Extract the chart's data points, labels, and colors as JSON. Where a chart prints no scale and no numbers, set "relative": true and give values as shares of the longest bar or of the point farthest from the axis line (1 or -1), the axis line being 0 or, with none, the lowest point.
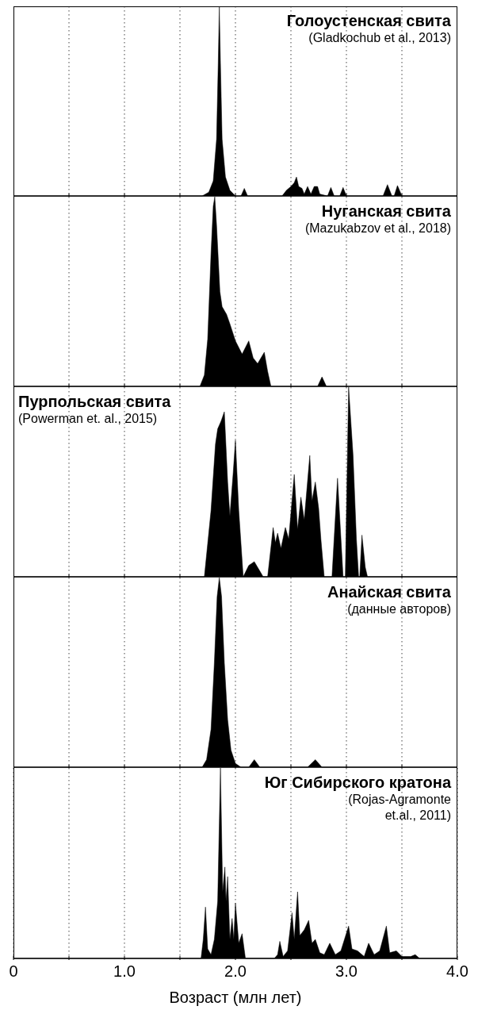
{
  "chart_data": [
    {
      "type": "area",
      "title": "Голоустенская свита",
      "subtitle": "(Gladkochub et al., 2013)",
      "relative": true,
      "color": "#000000",
      "xlim": [
        0,
        4
      ],
      "xticks": [
        {
          "value": 0.5,
          "label": null
        },
        {
          "value": 1,
          "label": null
        },
        {
          "value": 1.5,
          "label": null
        },
        {
          "value": 2,
          "label": null
        },
        {
          "value": 2.5,
          "label": null
        },
        {
          "value": 3,
          "label": null
        },
        {
          "value": 3.5,
          "label": null
        }
      ],
      "grid": "x",
      "tick_labels": false,
      "x": [
        0,
        1.7,
        1.76,
        1.8,
        1.83,
        1.845,
        1.855,
        1.865,
        1.88,
        1.91,
        1.95,
        2.0,
        2.05,
        2.08,
        2.11,
        2.42,
        2.46,
        2.5,
        2.53,
        2.55,
        2.57,
        2.6,
        2.62,
        2.65,
        2.68,
        2.71,
        2.74,
        2.76,
        2.83,
        2.86,
        2.89,
        2.94,
        2.97,
        3.0,
        3.33,
        3.37,
        3.41,
        3.43,
        3.46,
        3.5,
        4
      ],
      "values": [
        0,
        0,
        0.02,
        0.08,
        0.3,
        0.7,
        1,
        0.7,
        0.3,
        0.1,
        0.03,
        0,
        0,
        0.04,
        0,
        0,
        0.03,
        0.05,
        0.07,
        0.1,
        0.05,
        0.04,
        0.01,
        0.05,
        0.01,
        0.05,
        0.05,
        0.01,
        0,
        0.045,
        0,
        0,
        0.045,
        0,
        0,
        0.06,
        0,
        0,
        0.055,
        0,
        0
      ]
    },
    {
      "type": "area",
      "title": "Нуганская свита",
      "subtitle": "(Mazukabzov et al., 2018)",
      "relative": true,
      "color": "#000000",
      "xlim": [
        0,
        4
      ],
      "xticks": [
        {
          "value": 0.5,
          "label": null
        },
        {
          "value": 1,
          "label": null
        },
        {
          "value": 1.5,
          "label": null
        },
        {
          "value": 2,
          "label": null
        },
        {
          "value": 2.5,
          "label": null
        },
        {
          "value": 3,
          "label": null
        },
        {
          "value": 3.5,
          "label": null
        }
      ],
      "grid": "x",
      "tick_labels": false,
      "x": [
        0,
        1.68,
        1.72,
        1.75,
        1.78,
        1.8,
        1.814,
        1.83,
        1.86,
        1.88,
        1.92,
        1.95,
        2.0,
        2.06,
        2.12,
        2.16,
        2.2,
        2.26,
        2.29,
        2.32,
        2.74,
        2.78,
        2.82,
        4
      ],
      "values": [
        0,
        0,
        0.06,
        0.25,
        0.7,
        0.95,
        1,
        0.85,
        0.5,
        0.42,
        0.38,
        0.33,
        0.24,
        0.17,
        0.24,
        0.15,
        0.12,
        0.18,
        0.08,
        0,
        0,
        0.05,
        0,
        0
      ]
    },
    {
      "type": "area",
      "title": "Пурпольская свита",
      "subtitle": "(Powerman et. al., 2015)",
      "relative": true,
      "color": "#000000",
      "xlim": [
        0,
        4
      ],
      "xticks": [
        {
          "value": 0.5,
          "label": null
        },
        {
          "value": 1,
          "label": null
        },
        {
          "value": 1.5,
          "label": null
        },
        {
          "value": 2,
          "label": null
        },
        {
          "value": 2.5,
          "label": null
        },
        {
          "value": 3,
          "label": null
        },
        {
          "value": 3.5,
          "label": null
        }
      ],
      "grid": "x",
      "tick_labels": false,
      "x": [
        0,
        1.72,
        1.78,
        1.82,
        1.84,
        1.87,
        1.9,
        1.93,
        1.95,
        1.98,
        2.0,
        2.03,
        2.07,
        2.12,
        2.17,
        2.22,
        2.25,
        2.29,
        2.34,
        2.36,
        2.38,
        2.41,
        2.45,
        2.48,
        2.53,
        2.56,
        2.59,
        2.62,
        2.67,
        2.69,
        2.72,
        2.75,
        2.77,
        2.8,
        2.87,
        2.92,
        2.97,
        2.99,
        3.02,
        3.06,
        3.09,
        3.11,
        3.12,
        3.14,
        3.17,
        3.19,
        4
      ],
      "values": [
        0,
        0,
        0.35,
        0.7,
        0.78,
        0.82,
        0.87,
        0.5,
        0.32,
        0.55,
        0.72,
        0.35,
        0,
        0.06,
        0.08,
        0.03,
        0,
        0,
        0.26,
        0.18,
        0.23,
        0.15,
        0.26,
        0.2,
        0.54,
        0.25,
        0.42,
        0.3,
        0.64,
        0.4,
        0.5,
        0.36,
        0.2,
        0,
        0,
        0.52,
        0,
        0,
        1,
        0.64,
        0.2,
        0,
        0,
        0.22,
        0.05,
        0,
        0
      ]
    },
    {
      "type": "area",
      "title": "Анайская свита",
      "subtitle": "(данные авторов)",
      "relative": true,
      "color": "#000000",
      "xlim": [
        0,
        4
      ],
      "xticks": [
        {
          "value": 0.5,
          "label": null
        },
        {
          "value": 1,
          "label": null
        },
        {
          "value": 1.5,
          "label": null
        },
        {
          "value": 2,
          "label": null
        },
        {
          "value": 2.5,
          "label": null
        },
        {
          "value": 3,
          "label": null
        },
        {
          "value": 3.5,
          "label": null
        }
      ],
      "grid": "x",
      "tick_labels": false,
      "x": [
        0,
        1.7,
        1.74,
        1.78,
        1.81,
        1.835,
        1.855,
        1.875,
        1.9,
        1.93,
        1.96,
        2.0,
        2.05,
        2.12,
        2.17,
        2.22,
        2.65,
        2.72,
        2.78,
        4
      ],
      "values": [
        0,
        0,
        0.04,
        0.2,
        0.55,
        0.9,
        1,
        0.9,
        0.55,
        0.25,
        0.09,
        0.02,
        0,
        0,
        0.04,
        0,
        0,
        0.04,
        0,
        0
      ]
    },
    {
      "type": "area",
      "title": "Юг Сибирского кратона",
      "subtitle": "(Rojas-Agramonte et.al., 2011)",
      "xlabel": "Возраст (млн лет)",
      "relative": true,
      "color": "#000000",
      "xlim": [
        0,
        4
      ],
      "xticks": [
        0,
        {
          "value": 0.5,
          "label": null
        },
        {
          "value": 1,
          "label": "1.0"
        },
        {
          "value": 1.5,
          "label": null
        },
        {
          "value": 2,
          "label": "2.0"
        },
        {
          "value": 2.5,
          "label": null
        },
        {
          "value": 3,
          "label": "3.0"
        },
        {
          "value": 3.5,
          "label": null
        },
        {
          "value": 4,
          "label": "4.0"
        }
      ],
      "grid": "x",
      "tick_labels": "x",
      "x": [
        0,
        1.69,
        1.71,
        1.73,
        1.75,
        1.78,
        1.81,
        1.84,
        1.865,
        1.885,
        1.905,
        1.915,
        1.93,
        1.95,
        1.97,
        1.985,
        2.0,
        2.03,
        2.06,
        2.09,
        2.35,
        2.38,
        2.4,
        2.43,
        2.47,
        2.51,
        2.53,
        2.56,
        2.58,
        2.62,
        2.66,
        2.69,
        2.72,
        2.76,
        2.8,
        2.85,
        2.9,
        2.95,
        3.02,
        3.05,
        3.1,
        3.16,
        3.2,
        3.25,
        3.3,
        3.36,
        3.39,
        3.45,
        3.5,
        3.58,
        3.62,
        3.66,
        4
      ],
      "values": [
        0,
        0,
        0.1,
        0.27,
        0.05,
        0.02,
        0.1,
        0.3,
        1,
        0.35,
        0.48,
        0.3,
        0.43,
        0.1,
        0.21,
        0.1,
        0.29,
        0.08,
        0.13,
        0,
        0,
        0.02,
        0.09,
        0.01,
        0.04,
        0.24,
        0.1,
        0.35,
        0.12,
        0.15,
        0.2,
        0.08,
        0.1,
        0.03,
        0.02,
        0.08,
        0.02,
        0.04,
        0.17,
        0.05,
        0.04,
        0.01,
        0.08,
        0.02,
        0.04,
        0.17,
        0.03,
        0.04,
        0.01,
        0.01,
        0.02,
        0,
        0
      ]
    }
  ]
}
